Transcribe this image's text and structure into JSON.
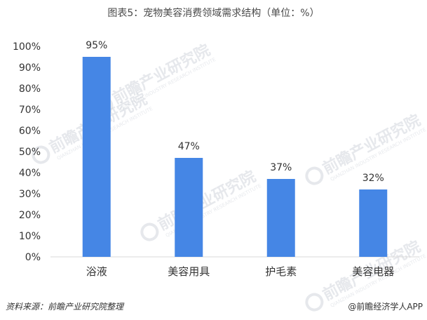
{
  "title": "图表5：宠物美容消费领域需求结构（单位：%）",
  "footer": {
    "source": "资料来源：前瞻产业研究院整理",
    "brand": "@前瞻经济学人APP"
  },
  "watermark": {
    "text": "前瞻产业研究院",
    "sub": "QIANZHAN INDUSTRY RESEARCH INSTITUTE"
  },
  "colors": {
    "bar": "#4586e5",
    "axis": "#d9d9d9",
    "text": "#333333",
    "watermark": "#c9ced6"
  },
  "chart_data": {
    "type": "bar",
    "title": "图表5：宠物美容消费领域需求结构（单位：%）",
    "categories": [
      "浴液",
      "美容用具",
      "护毛素",
      "美容电器"
    ],
    "values": [
      95,
      47,
      37,
      32
    ],
    "data_labels": [
      "95%",
      "47%",
      "37%",
      "32%"
    ],
    "yticks": [
      "0%",
      "10%",
      "20%",
      "30%",
      "40%",
      "50%",
      "60%",
      "70%",
      "80%",
      "90%",
      "100%"
    ],
    "ylim": [
      0,
      100
    ],
    "grid": false,
    "legend": "none"
  }
}
